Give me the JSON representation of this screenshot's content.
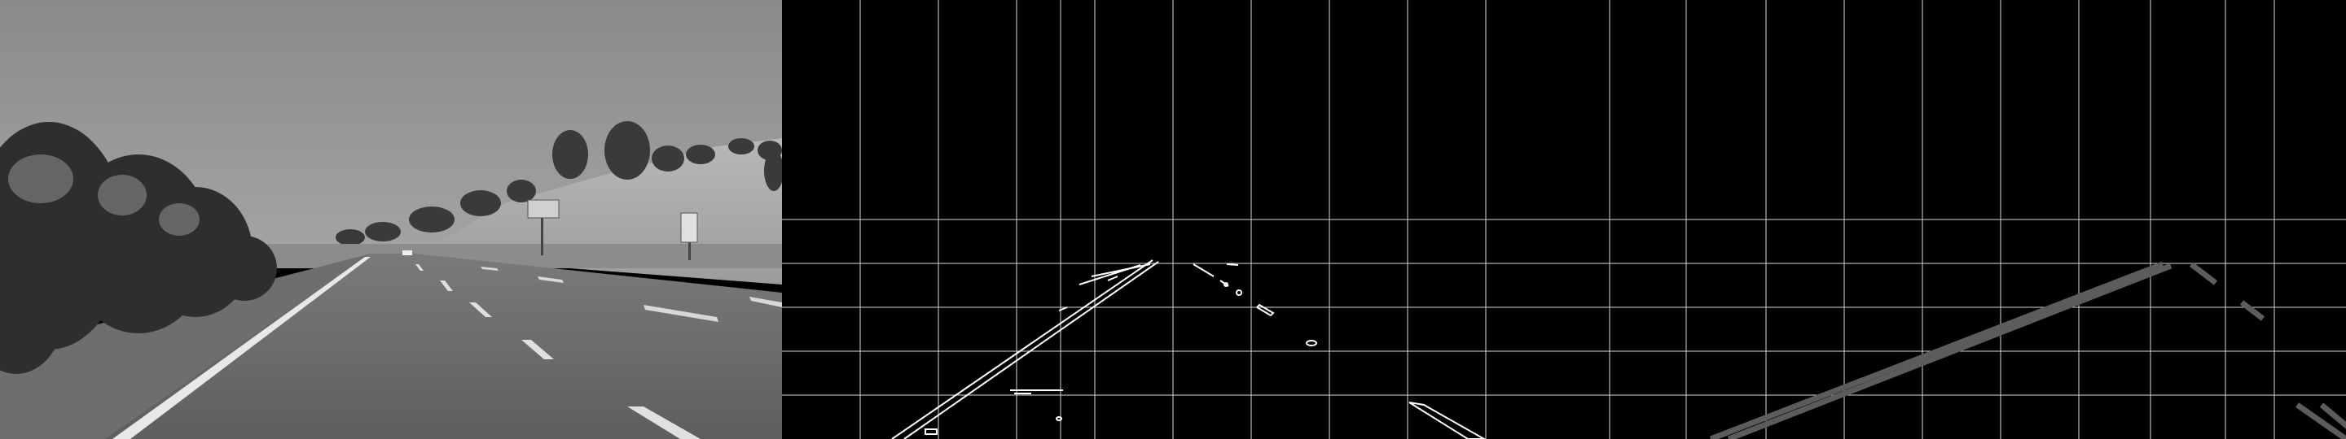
{
  "panels": [
    {
      "id": "grayscale-frame",
      "kind": "grayscale road photo"
    },
    {
      "id": "edge-map",
      "kind": "canny edge detection with grid overlay"
    },
    {
      "id": "hough-lines",
      "kind": "detected lane lines with grid overlay"
    }
  ],
  "colors": {
    "sky": "#8f8f8f",
    "road": "#6b6b6b",
    "edge": "#ffffff",
    "grid": "#ffffff",
    "detected_line": "#5a5a5a"
  }
}
